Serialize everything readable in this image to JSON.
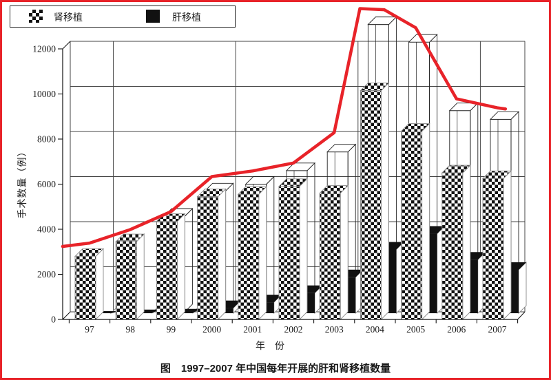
{
  "figure": {
    "caption": "图　1997–2007 年中国每年开展的肝和肾移植数量",
    "border_color": "#e82329"
  },
  "legend": {
    "items": [
      {
        "label": "肾移植",
        "swatch": "checkerboard"
      },
      {
        "label": "肝移植",
        "swatch": "solid-black"
      }
    ]
  },
  "chart_data": {
    "type": "bar",
    "style": "pseudo-3d column chart with overlaid line",
    "title": "图　1997–2007 年中国每年开展的肝和肾移植数量",
    "xlabel": "年　份",
    "ylabel": "手术数量（例）",
    "categories": [
      "97",
      "98",
      "99",
      "2000",
      "2001",
      "2002",
      "2003",
      "2004",
      "2005",
      "2006",
      "2007"
    ],
    "y_ticks": [
      0,
      2000,
      4000,
      6000,
      8000,
      10000,
      12000
    ],
    "ylim": [
      0,
      12000
    ],
    "grid": "horizontal gridlines every 2000 on back wall; vertical separators after 97, 2000, 2003, 2006; legend top-left",
    "series": [
      {
        "name": "肾移植",
        "type": "bar",
        "fill": "checkerboard",
        "values": [
          2800,
          3450,
          4350,
          5450,
          5550,
          5900,
          5600,
          10150,
          8350,
          6500,
          6250
        ]
      },
      {
        "name": "肝移植",
        "type": "bar",
        "fill": "#111111",
        "values": [
          30,
          100,
          130,
          500,
          760,
          1170,
          1870,
          3100,
          3800,
          2650,
          2200
        ]
      },
      {
        "name": "white-outline-total-box",
        "type": "bar-outline",
        "fill": "none",
        "values": [
          null,
          null,
          4580,
          5700,
          6000,
          6600,
          7430,
          13080,
          12300,
          9260,
          8875
        ]
      },
      {
        "name": "red-trend-line",
        "type": "line",
        "color": "#e82329",
        "values_by_year": [
          3050,
          3650,
          4450,
          6000,
          6250,
          6600,
          7950,
          13450,
          12600,
          9450,
          9050
        ],
        "points": [
          [
            -0.66,
            2900
          ],
          [
            0,
            3050
          ],
          [
            1,
            3650
          ],
          [
            2,
            4450
          ],
          [
            3,
            6000
          ],
          [
            4,
            6250
          ],
          [
            5,
            6600
          ],
          [
            6,
            7950
          ],
          [
            6.63,
            13450
          ],
          [
            7.23,
            13400
          ],
          [
            8,
            12600
          ],
          [
            9,
            9450
          ],
          [
            10,
            9050
          ],
          [
            10.2,
            9000
          ]
        ]
      }
    ]
  }
}
